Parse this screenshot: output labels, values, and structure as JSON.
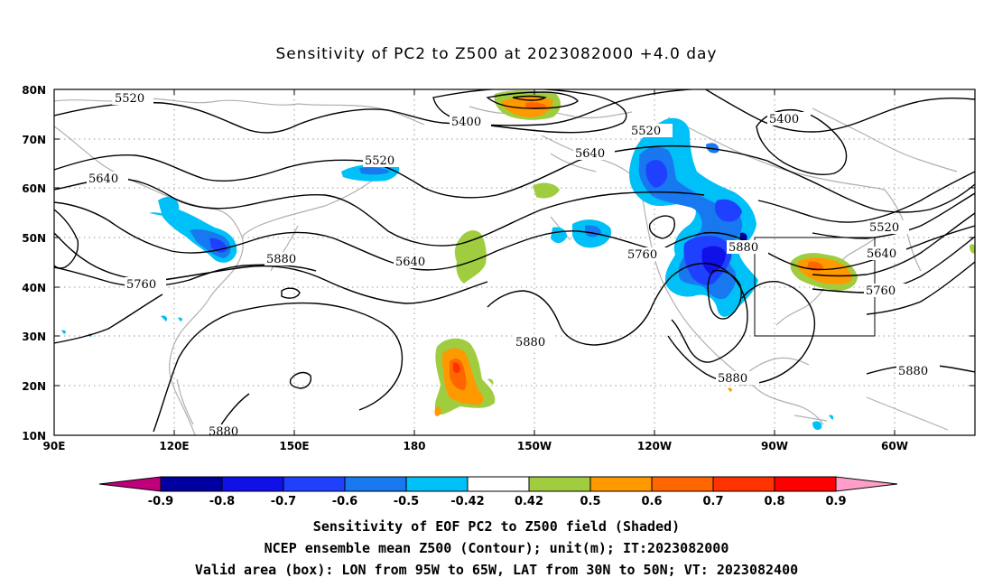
{
  "title": "Sensitivity of PC2 to Z500 at 2023082000 +4.0 day",
  "lat_labels": [
    "80N",
    "70N",
    "60N",
    "50N",
    "40N",
    "30N",
    "20N",
    "10N"
  ],
  "lon_labels": [
    "90E",
    "120E",
    "150E",
    "180",
    "150W",
    "120W",
    "90W",
    "60W"
  ],
  "contour_labels": [
    "5520",
    "5400",
    "5520",
    "5400",
    "5520",
    "5640",
    "5640",
    "5520",
    "5640",
    "5640",
    "5760",
    "5760",
    "5880",
    "5880",
    "5760",
    "5880",
    "5880",
    "5880",
    "5880"
  ],
  "colorbar": {
    "labels": [
      "-0.9",
      "-0.8",
      "-0.7",
      "-0.6",
      "-0.5",
      "-0.42",
      "0.42",
      "0.5",
      "0.6",
      "0.7",
      "0.8",
      "0.9"
    ],
    "colors": [
      "#0000a0",
      "#1010e8",
      "#2040ff",
      "#1878f0",
      "#00c0f8",
      "#ffffff",
      "#a0cc40",
      "#ff9900",
      "#ff6600",
      "#ff3300",
      "#ff0000"
    ],
    "low_end_color": "#c0007a",
    "high_end_color": "#ff9ec8"
  },
  "captions": [
    "Sensitivity of EOF PC2 to Z500 field (Shaded)",
    "NCEP ensemble mean Z500 (Contour); unit(m); IT:2023082000",
    "Valid area (box): LON from 95W to 65W, LAT from 30N to 50N; VT: 2023082400"
  ]
}
